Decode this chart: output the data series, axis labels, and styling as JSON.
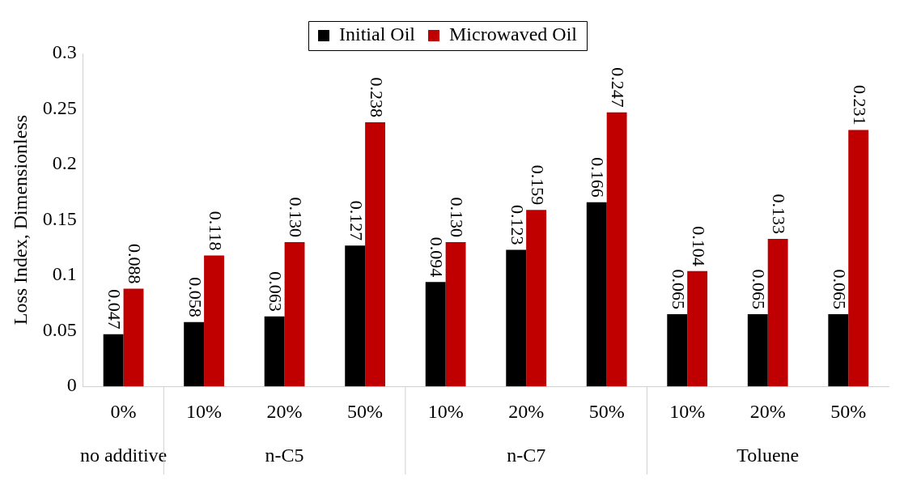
{
  "chart_data": {
    "type": "bar",
    "ylabel": "Loss Index, Dimensionless",
    "categories": [
      "0%",
      "10%",
      "20%",
      "50%",
      "10%",
      "20%",
      "50%",
      "10%",
      "20%",
      "50%"
    ],
    "annotations": [
      "no additive",
      "n-C5",
      "n-C7",
      "Toluene"
    ],
    "series": [
      {
        "name": "Initial Oil",
        "color": "#000000",
        "values": [
          0.047,
          0.058,
          0.063,
          0.127,
          0.094,
          0.123,
          0.166,
          0.065,
          0.065,
          0.065
        ],
        "value_labels": [
          "0.047",
          "0.058",
          "0.063",
          "0.127",
          "0.094",
          "0.123",
          "0.166",
          "0.065",
          "0.065",
          "0.065"
        ]
      },
      {
        "name": "Microwaved Oil",
        "color": "#c00000",
        "values": [
          0.088,
          0.118,
          0.13,
          0.238,
          0.13,
          0.159,
          0.247,
          0.104,
          0.133,
          0.231
        ],
        "value_labels": [
          "0.088",
          "0.118",
          "0.130",
          "0.238",
          "0.130",
          "0.159",
          "0.247",
          "0.104",
          "0.133",
          "0.231"
        ]
      }
    ],
    "ylim": [
      0,
      0.3
    ],
    "yticks": [
      0,
      0.05,
      0.1,
      0.15,
      0.2,
      0.25,
      0.3
    ],
    "grid": false,
    "legend": "top"
  }
}
